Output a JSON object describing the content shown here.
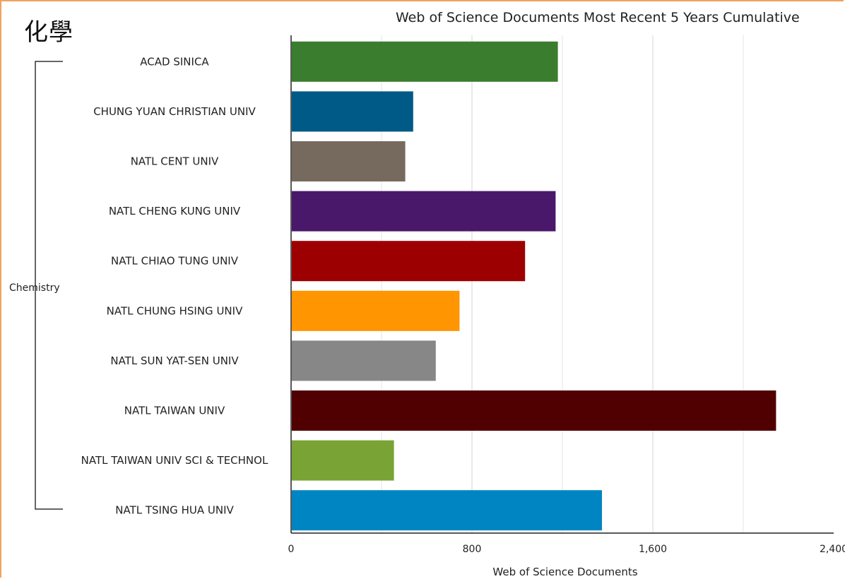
{
  "page": {
    "title": "化學"
  },
  "chart_data": {
    "type": "bar",
    "orientation": "horizontal",
    "title": "Web of Science Documents Most Recent 5 Years Cumulative",
    "xlabel": "Web of Science Documents",
    "ylabel": "",
    "group_label": "Chemistry",
    "xlim": [
      0,
      2400
    ],
    "xticks": [
      0,
      800,
      1600,
      2400
    ],
    "xtick_labels": [
      "0",
      "800",
      "1,600",
      "2,400"
    ],
    "grid": true,
    "categories": [
      "ACAD SINICA",
      "CHUNG YUAN CHRISTIAN UNIV",
      "NATL CENT UNIV",
      "NATL CHENG KUNG UNIV",
      "NATL CHIAO TUNG UNIV",
      "NATL CHUNG HSING UNIV",
      "NATL SUN YAT-SEN UNIV",
      "NATL TAIWAN UNIV",
      "NATL TAIWAN UNIV SCI & TECHNOL",
      "NATL TSING HUA UNIV"
    ],
    "values": [
      1180,
      540,
      505,
      1170,
      1035,
      745,
      640,
      2145,
      455,
      1375
    ],
    "colors": [
      "#3a7d2e",
      "#005a87",
      "#766a5f",
      "#4a186b",
      "#9d0000",
      "#ff9500",
      "#878787",
      "#500000",
      "#7aa335",
      "#0085c3"
    ]
  }
}
